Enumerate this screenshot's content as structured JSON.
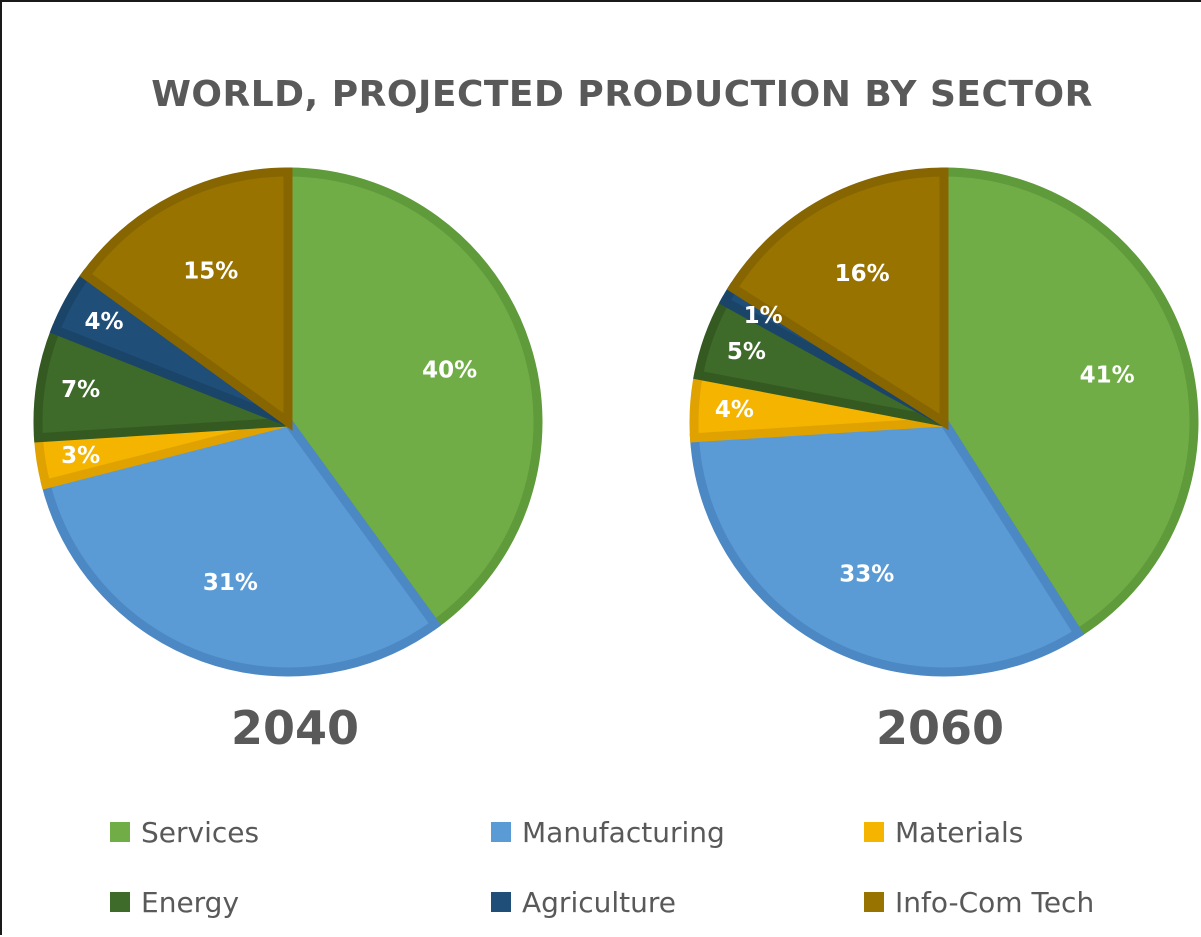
{
  "chart_data": {
    "type": "pie",
    "title": "WORLD, PROJECTED PRODUCTION BY SECTOR",
    "categories": [
      "Services",
      "Manufacturing",
      "Materials",
      "Energy",
      "Agriculture",
      "Info-Com Tech"
    ],
    "colors": {
      "Services": "#70ad47",
      "Manufacturing": "#5b9bd5",
      "Materials": "#f5b400",
      "Energy": "#3e6a2a",
      "Agriculture": "#1f4e79",
      "Info-Com Tech": "#997300"
    },
    "edge_colors": {
      "Services": "#5f9a3b",
      "Manufacturing": "#4c88c4",
      "Materials": "#e0a200",
      "Energy": "#345a22",
      "Agriculture": "#1b4469",
      "Info-Com Tech": "#876500"
    },
    "pies": [
      {
        "year": "2040",
        "values": {
          "Services": 40,
          "Manufacturing": 31,
          "Materials": 3,
          "Energy": 7,
          "Agriculture": 4,
          "Info-Com Tech": 15
        },
        "labels": {
          "Services": "40%",
          "Manufacturing": "31%",
          "Materials": "3%",
          "Energy": "7%",
          "Agriculture": "4%",
          "Info-Com Tech": "15%"
        }
      },
      {
        "year": "2060",
        "values": {
          "Services": 41,
          "Manufacturing": 33,
          "Materials": 4,
          "Energy": 5,
          "Agriculture": 1,
          "Info-Com Tech": 16
        },
        "labels": {
          "Services": "41%",
          "Manufacturing": "33%",
          "Materials": "4%",
          "Energy": "5%",
          "Agriculture": "1%",
          "Info-Com Tech": "16%"
        }
      }
    ],
    "legend": {
      "placement": "bottom",
      "items": [
        "Services",
        "Manufacturing",
        "Materials",
        "Energy",
        "Agriculture",
        "Info-Com Tech"
      ]
    }
  }
}
